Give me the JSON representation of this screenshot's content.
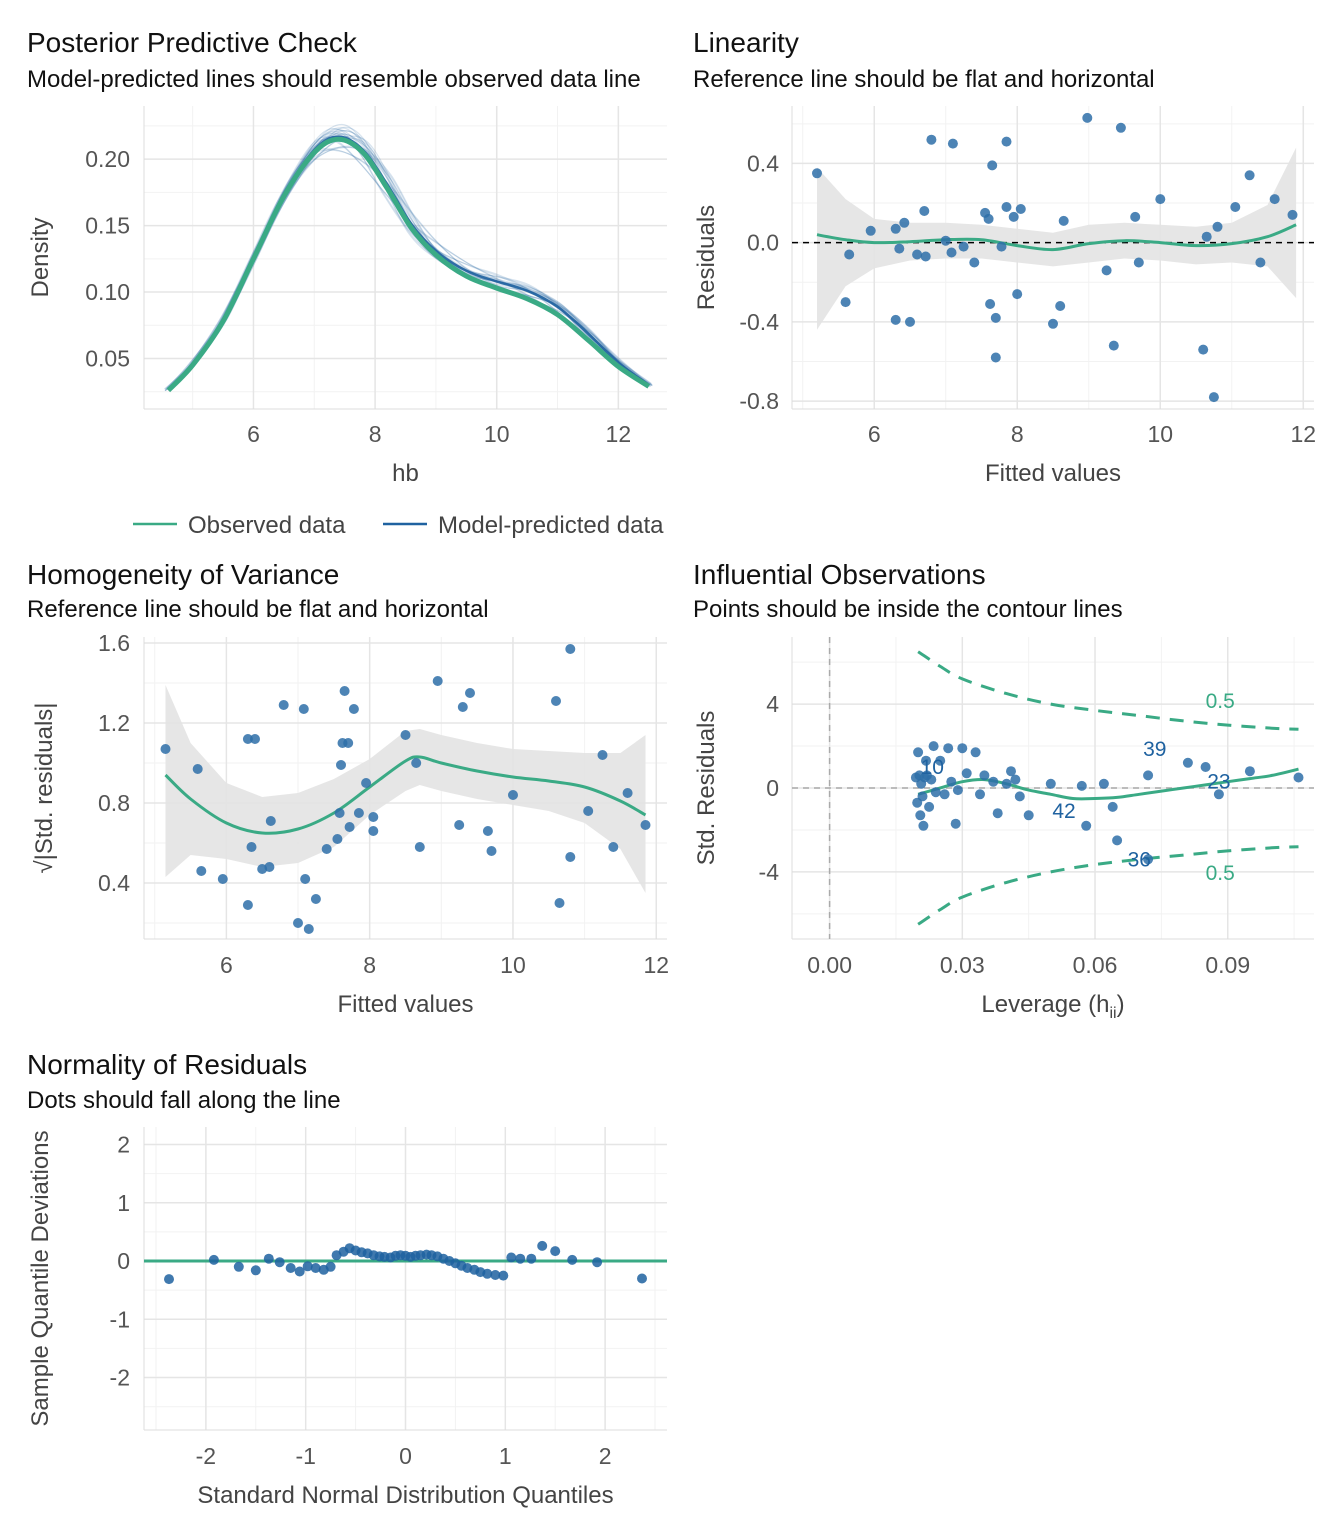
{
  "colors": {
    "observed": "#3aaa85",
    "predicted": "#1f62a0",
    "points": "#2e6fa8",
    "grid_major": "#e5e5e5",
    "grid_minor": "#f2f2f2",
    "ribbon": "#e3e3e3",
    "tick_text": "#555555",
    "axis_title": "#444444",
    "title": "#111111"
  },
  "legend": {
    "observed_label": "Observed data",
    "predicted_label": "Model-predicted data"
  },
  "chart_data": [
    {
      "id": "ppc",
      "type": "line",
      "title": "Posterior Predictive Check",
      "subtitle": "Model-predicted lines should resemble observed data line",
      "xlabel": "hb",
      "ylabel": "Density",
      "xlim": [
        4.2,
        12.8
      ],
      "ylim": [
        0.012,
        0.24
      ],
      "xticks": [
        6,
        8,
        10,
        12
      ],
      "yticks": [
        0.05,
        0.1,
        0.15,
        0.2
      ],
      "ytick_labels": [
        "0.05",
        "0.10",
        "0.15",
        "0.20"
      ],
      "series": [
        {
          "name": "Observed data",
          "x": [
            4.6,
            5.0,
            5.5,
            6.0,
            6.5,
            7.0,
            7.4,
            7.8,
            8.2,
            8.6,
            9.0,
            9.5,
            10.0,
            10.5,
            11.0,
            11.5,
            12.0,
            12.5
          ],
          "y": [
            0.026,
            0.045,
            0.078,
            0.125,
            0.172,
            0.205,
            0.215,
            0.205,
            0.178,
            0.148,
            0.128,
            0.112,
            0.103,
            0.095,
            0.083,
            0.064,
            0.044,
            0.029
          ]
        },
        {
          "name": "Model-predicted data",
          "x": [
            4.6,
            5.0,
            5.5,
            6.0,
            6.5,
            7.0,
            7.4,
            7.8,
            8.2,
            8.6,
            9.0,
            9.5,
            10.0,
            10.5,
            11.0,
            11.5,
            12.0,
            12.5
          ],
          "y": [
            0.027,
            0.046,
            0.079,
            0.126,
            0.173,
            0.207,
            0.217,
            0.207,
            0.181,
            0.151,
            0.131,
            0.116,
            0.108,
            0.101,
            0.089,
            0.069,
            0.047,
            0.03
          ]
        }
      ]
    },
    {
      "id": "linearity",
      "type": "scatter",
      "title": "Linearity",
      "subtitle": "Reference line should be flat and horizontal",
      "xlabel": "Fitted values",
      "ylabel": "Residuals",
      "xlim": [
        4.85,
        12.15
      ],
      "ylim": [
        -0.84,
        0.69
      ],
      "xticks": [
        6,
        8,
        10,
        12
      ],
      "yticks": [
        -0.8,
        -0.4,
        0.0,
        0.4
      ],
      "ytick_labels": [
        "-0.8",
        "-0.4",
        "0.0",
        "0.4"
      ],
      "points": [
        [
          5.2,
          0.35
        ],
        [
          5.6,
          -0.3
        ],
        [
          5.65,
          -0.06
        ],
        [
          5.95,
          0.06
        ],
        [
          6.3,
          -0.39
        ],
        [
          6.3,
          0.07
        ],
        [
          6.35,
          -0.03
        ],
        [
          6.42,
          0.1
        ],
        [
          6.5,
          -0.4
        ],
        [
          6.6,
          -0.06
        ],
        [
          6.7,
          0.16
        ],
        [
          6.72,
          -0.07
        ],
        [
          6.8,
          0.52
        ],
        [
          7.0,
          0.01
        ],
        [
          7.08,
          -0.05
        ],
        [
          7.1,
          0.5
        ],
        [
          7.25,
          -0.02
        ],
        [
          7.4,
          -0.1
        ],
        [
          7.55,
          0.15
        ],
        [
          7.6,
          0.12
        ],
        [
          7.65,
          0.39
        ],
        [
          7.62,
          -0.31
        ],
        [
          7.7,
          -0.38
        ],
        [
          7.7,
          -0.58
        ],
        [
          7.78,
          -0.02
        ],
        [
          7.85,
          0.51
        ],
        [
          7.85,
          0.18
        ],
        [
          7.95,
          0.13
        ],
        [
          8.0,
          -0.26
        ],
        [
          8.05,
          0.17
        ],
        [
          8.5,
          -0.41
        ],
        [
          8.6,
          -0.32
        ],
        [
          8.65,
          0.11
        ],
        [
          8.98,
          0.63
        ],
        [
          9.25,
          -0.14
        ],
        [
          9.35,
          -0.52
        ],
        [
          9.45,
          0.58
        ],
        [
          9.65,
          0.13
        ],
        [
          9.7,
          -0.1
        ],
        [
          10.0,
          0.22
        ],
        [
          10.6,
          -0.54
        ],
        [
          10.65,
          0.03
        ],
        [
          10.75,
          -0.78
        ],
        [
          10.8,
          0.08
        ],
        [
          11.05,
          0.18
        ],
        [
          11.25,
          0.34
        ],
        [
          11.4,
          -0.1
        ],
        [
          11.6,
          0.22
        ],
        [
          11.85,
          0.14
        ]
      ],
      "smooth_x": [
        5.2,
        5.6,
        6.0,
        6.5,
        7.0,
        7.5,
        8.0,
        8.5,
        9.0,
        9.5,
        10.0,
        10.5,
        11.0,
        11.5,
        11.9
      ],
      "smooth_y": [
        0.04,
        0.015,
        0.0,
        0.005,
        0.015,
        0.015,
        -0.015,
        -0.035,
        -0.005,
        0.01,
        0.0,
        -0.015,
        -0.005,
        0.03,
        0.09
      ],
      "band_upper": [
        0.38,
        0.22,
        0.12,
        0.1,
        0.1,
        0.09,
        0.07,
        0.05,
        0.09,
        0.1,
        0.09,
        0.08,
        0.1,
        0.19,
        0.48
      ],
      "band_lower": [
        -0.44,
        -0.22,
        -0.13,
        -0.09,
        -0.08,
        -0.08,
        -0.1,
        -0.12,
        -0.1,
        -0.08,
        -0.09,
        -0.11,
        -0.1,
        -0.12,
        -0.28
      ],
      "reference_y": 0
    },
    {
      "id": "homogeneity",
      "type": "scatter",
      "title": "Homogeneity of Variance",
      "subtitle": "Reference line should be flat and horizontal",
      "xlabel": "Fitted values",
      "ylabel": "√|Std. residuals|",
      "xlim": [
        4.85,
        12.15
      ],
      "ylim": [
        0.12,
        1.63
      ],
      "xticks": [
        6,
        8,
        10,
        12
      ],
      "yticks": [
        0.4,
        0.8,
        1.2,
        1.6
      ],
      "ytick_labels": [
        "0.4",
        "0.8",
        "1.2",
        "1.6"
      ],
      "points": [
        [
          5.15,
          1.07
        ],
        [
          5.6,
          0.97
        ],
        [
          5.65,
          0.46
        ],
        [
          5.95,
          0.42
        ],
        [
          6.3,
          1.12
        ],
        [
          6.3,
          0.29
        ],
        [
          6.35,
          0.58
        ],
        [
          6.4,
          1.12
        ],
        [
          6.5,
          0.47
        ],
        [
          6.6,
          0.48
        ],
        [
          6.62,
          0.71
        ],
        [
          6.8,
          1.29
        ],
        [
          7.0,
          0.2
        ],
        [
          7.08,
          1.27
        ],
        [
          7.1,
          0.42
        ],
        [
          7.15,
          0.17
        ],
        [
          7.25,
          0.32
        ],
        [
          7.4,
          0.57
        ],
        [
          7.55,
          0.62
        ],
        [
          7.58,
          0.75
        ],
        [
          7.6,
          0.99
        ],
        [
          7.62,
          1.1
        ],
        [
          7.65,
          1.36
        ],
        [
          7.7,
          1.1
        ],
        [
          7.72,
          0.68
        ],
        [
          7.78,
          1.27
        ],
        [
          7.85,
          0.75
        ],
        [
          7.95,
          0.9
        ],
        [
          8.05,
          0.73
        ],
        [
          8.05,
          0.66
        ],
        [
          8.5,
          1.14
        ],
        [
          8.65,
          1.0
        ],
        [
          8.7,
          0.58
        ],
        [
          8.95,
          1.41
        ],
        [
          9.25,
          0.69
        ],
        [
          9.3,
          1.28
        ],
        [
          9.4,
          1.35
        ],
        [
          9.65,
          0.66
        ],
        [
          9.7,
          0.56
        ],
        [
          10.0,
          0.84
        ],
        [
          10.6,
          1.31
        ],
        [
          10.65,
          0.3
        ],
        [
          10.8,
          1.57
        ],
        [
          10.8,
          0.53
        ],
        [
          11.05,
          0.76
        ],
        [
          11.25,
          1.04
        ],
        [
          11.4,
          0.58
        ],
        [
          11.6,
          0.85
        ],
        [
          11.85,
          0.69
        ]
      ],
      "smooth_x": [
        5.15,
        5.5,
        6.0,
        6.5,
        7.0,
        7.5,
        8.0,
        8.5,
        8.7,
        9.0,
        9.5,
        10.0,
        10.5,
        11.0,
        11.5,
        11.85
      ],
      "smooth_y": [
        0.94,
        0.82,
        0.7,
        0.65,
        0.67,
        0.75,
        0.88,
        1.01,
        1.03,
        1.0,
        0.96,
        0.93,
        0.91,
        0.88,
        0.81,
        0.74
      ],
      "band_upper": [
        1.39,
        1.1,
        0.9,
        0.83,
        0.85,
        0.92,
        1.02,
        1.16,
        1.17,
        1.14,
        1.1,
        1.07,
        1.06,
        1.05,
        1.05,
        1.14
      ],
      "band_lower": [
        0.43,
        0.54,
        0.52,
        0.48,
        0.5,
        0.58,
        0.74,
        0.86,
        0.89,
        0.86,
        0.82,
        0.79,
        0.76,
        0.7,
        0.57,
        0.35
      ]
    },
    {
      "id": "influential",
      "type": "scatter",
      "title": "Influential Observations",
      "subtitle": "Points should be inside the contour lines",
      "xlabel": "Leverage (h",
      "xlabel_sub": "ii",
      "xlabel_close": ")",
      "ylabel": "Std. Residuals",
      "xlim": [
        -0.0085,
        0.1095
      ],
      "ylim": [
        -7.2,
        7.2
      ],
      "xticks": [
        0.0,
        0.03,
        0.06,
        0.09
      ],
      "xtick_labels": [
        "0.00",
        "0.03",
        "0.06",
        "0.09"
      ],
      "yticks": [
        -4,
        0,
        4
      ],
      "ytick_labels": [
        "-4",
        "0",
        "4"
      ],
      "points": [
        [
          0.0195,
          0.5
        ],
        [
          0.0198,
          -0.7
        ],
        [
          0.02,
          1.7
        ],
        [
          0.0203,
          0.6
        ],
        [
          0.0205,
          -1.3
        ],
        [
          0.0207,
          0.2
        ],
        [
          0.021,
          -0.4
        ],
        [
          0.0212,
          -1.8
        ],
        [
          0.0215,
          0.5
        ],
        [
          0.0218,
          1.3
        ],
        [
          0.022,
          0.6
        ],
        [
          0.0225,
          -0.9
        ],
        [
          0.023,
          0.4
        ],
        [
          0.0235,
          2.0
        ],
        [
          0.024,
          -0.2
        ],
        [
          0.025,
          1.3
        ],
        [
          0.026,
          -0.3
        ],
        [
          0.0268,
          1.9
        ],
        [
          0.0275,
          0.3
        ],
        [
          0.0285,
          -1.7
        ],
        [
          0.029,
          -0.1
        ],
        [
          0.03,
          1.9
        ],
        [
          0.031,
          0.7
        ],
        [
          0.033,
          1.7
        ],
        [
          0.034,
          -0.3
        ],
        [
          0.035,
          0.6
        ],
        [
          0.037,
          0.3
        ],
        [
          0.038,
          -1.2
        ],
        [
          0.04,
          0.2
        ],
        [
          0.041,
          0.8
        ],
        [
          0.042,
          0.4
        ],
        [
          0.043,
          -0.4
        ],
        [
          0.045,
          -1.3
        ],
        [
          0.05,
          0.2
        ],
        [
          0.057,
          0.1
        ],
        [
          0.058,
          -1.8
        ],
        [
          0.062,
          0.2
        ],
        [
          0.064,
          -0.9
        ],
        [
          0.065,
          -2.5
        ],
        [
          0.072,
          0.6
        ],
        [
          0.081,
          1.2
        ],
        [
          0.085,
          1.0
        ],
        [
          0.088,
          -0.3
        ],
        [
          0.095,
          0.8
        ],
        [
          0.106,
          0.5
        ],
        [
          0.072,
          -3.4
        ]
      ],
      "labels": [
        {
          "text": "10",
          "x": 0.0232,
          "y": 1.05
        },
        {
          "text": "39",
          "x": 0.0735,
          "y": 1.9
        },
        {
          "text": "23",
          "x": 0.088,
          "y": 0.35
        },
        {
          "text": "42",
          "x": 0.053,
          "y": -1.05
        },
        {
          "text": "36",
          "x": 0.07,
          "y": -3.35
        }
      ],
      "contour_labels": [
        {
          "text": "0.5",
          "x": 0.085,
          "y": 4.2
        },
        {
          "text": "0.5",
          "x": 0.085,
          "y": -4.0
        }
      ],
      "contour_x": [
        0.02,
        0.025,
        0.03,
        0.04,
        0.05,
        0.06,
        0.07,
        0.08,
        0.09,
        0.1,
        0.106
      ],
      "contour_upper": [
        6.5,
        5.8,
        5.2,
        4.5,
        4.0,
        3.7,
        3.45,
        3.2,
        3.0,
        2.85,
        2.8
      ],
      "contour_lower": [
        -6.5,
        -5.8,
        -5.2,
        -4.5,
        -4.0,
        -3.65,
        -3.4,
        -3.2,
        -3.0,
        -2.85,
        -2.8
      ],
      "smooth_x": [
        0.02,
        0.025,
        0.03,
        0.035,
        0.04,
        0.045,
        0.05,
        0.055,
        0.06,
        0.065,
        0.07,
        0.075,
        0.08,
        0.085,
        0.09,
        0.095,
        0.1,
        0.106
      ],
      "smooth_y": [
        -0.3,
        0.0,
        0.3,
        0.4,
        0.2,
        -0.1,
        -0.3,
        -0.5,
        -0.5,
        -0.45,
        -0.3,
        -0.15,
        0.0,
        0.15,
        0.3,
        0.45,
        0.6,
        0.9
      ],
      "reference_y": 0,
      "reference_x": 0
    },
    {
      "id": "normality",
      "type": "scatter",
      "title": "Normality of Residuals",
      "subtitle": "Dots should fall along the line",
      "xlabel": "Standard Normal Distribution Quantiles",
      "ylabel": "Sample Quantile Deviations",
      "xlim": [
        -2.62,
        2.62
      ],
      "ylim": [
        -2.9,
        2.3
      ],
      "xticks": [
        -2,
        -1,
        0,
        1,
        2
      ],
      "yticks": [
        -2,
        -1,
        0,
        1,
        2
      ],
      "points": [
        [
          -2.37,
          -0.31
        ],
        [
          -1.92,
          0.02
        ],
        [
          -1.67,
          -0.1
        ],
        [
          -1.5,
          -0.16
        ],
        [
          -1.37,
          0.04
        ],
        [
          -1.26,
          -0.02
        ],
        [
          -1.15,
          -0.12
        ],
        [
          -1.06,
          -0.18
        ],
        [
          -0.98,
          -0.09
        ],
        [
          -0.9,
          -0.12
        ],
        [
          -0.82,
          -0.15
        ],
        [
          -0.75,
          -0.1
        ],
        [
          -0.69,
          0.1
        ],
        [
          -0.62,
          0.16
        ],
        [
          -0.56,
          0.22
        ],
        [
          -0.5,
          0.18
        ],
        [
          -0.44,
          0.15
        ],
        [
          -0.38,
          0.13
        ],
        [
          -0.32,
          0.1
        ],
        [
          -0.26,
          0.08
        ],
        [
          -0.21,
          0.07
        ],
        [
          -0.15,
          0.06
        ],
        [
          -0.1,
          0.09
        ],
        [
          -0.05,
          0.1
        ],
        [
          0.0,
          0.09
        ],
        [
          0.05,
          0.07
        ],
        [
          0.1,
          0.09
        ],
        [
          0.15,
          0.1
        ],
        [
          0.21,
          0.11
        ],
        [
          0.26,
          0.1
        ],
        [
          0.32,
          0.08
        ],
        [
          0.38,
          0.04
        ],
        [
          0.44,
          0.0
        ],
        [
          0.5,
          -0.04
        ],
        [
          0.56,
          -0.08
        ],
        [
          0.62,
          -0.12
        ],
        [
          0.69,
          -0.15
        ],
        [
          0.75,
          -0.19
        ],
        [
          0.82,
          -0.22
        ],
        [
          0.9,
          -0.24
        ],
        [
          0.98,
          -0.25
        ],
        [
          1.06,
          0.06
        ],
        [
          1.15,
          0.04
        ],
        [
          1.26,
          0.04
        ],
        [
          1.37,
          0.26
        ],
        [
          1.5,
          0.17
        ],
        [
          1.67,
          0.02
        ],
        [
          1.92,
          -0.02
        ],
        [
          2.37,
          -0.3
        ]
      ],
      "reference_y": 0
    }
  ]
}
